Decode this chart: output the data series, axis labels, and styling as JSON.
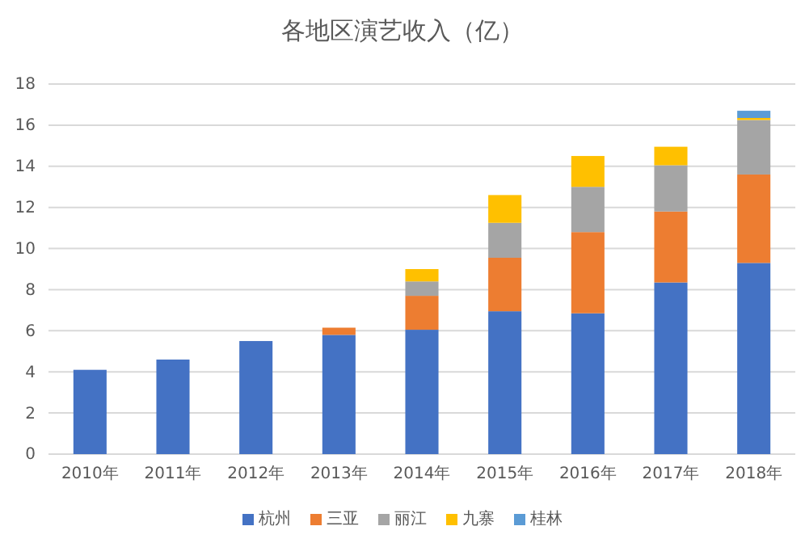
{
  "chart_data": {
    "type": "bar",
    "title": "各地区演艺收入（亿）",
    "stacked": true,
    "categories": [
      "2010年",
      "2011年",
      "2012年",
      "2013年",
      "2014年",
      "2015年",
      "2016年",
      "2017年",
      "2018年"
    ],
    "series": [
      {
        "name": "杭州",
        "color": "#4472c4",
        "values": [
          4.1,
          4.6,
          5.5,
          5.8,
          6.05,
          6.95,
          6.85,
          8.35,
          9.3
        ]
      },
      {
        "name": "三亚",
        "color": "#ed7d31",
        "values": [
          null,
          null,
          null,
          0.35,
          1.65,
          2.6,
          3.95,
          3.45,
          4.3
        ]
      },
      {
        "name": "丽江",
        "color": "#a5a5a5",
        "values": [
          null,
          null,
          null,
          null,
          0.7,
          1.7,
          2.2,
          2.25,
          2.65
        ]
      },
      {
        "name": "九寨",
        "color": "#ffc000",
        "values": [
          null,
          null,
          null,
          null,
          0.6,
          1.35,
          1.5,
          0.9,
          0.1
        ]
      },
      {
        "name": "桂林",
        "color": "#5b9bd5",
        "values": [
          null,
          null,
          null,
          null,
          null,
          null,
          null,
          null,
          0.35
        ]
      }
    ],
    "ylim": [
      0,
      18
    ],
    "yticks": [
      0,
      2,
      4,
      6,
      8,
      10,
      12,
      14,
      16,
      18
    ],
    "grid": "y",
    "legend": "bottom"
  }
}
